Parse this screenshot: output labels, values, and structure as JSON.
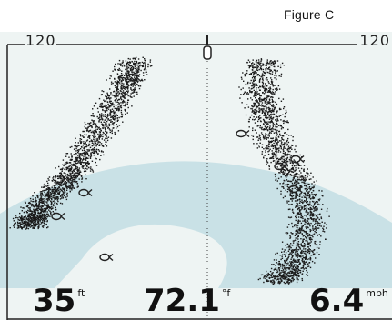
{
  "caption": "Figure C",
  "colors": {
    "screen_bg": "#eef4f3",
    "watermark": "#bcdbe2",
    "sonar_returns": "#1a1a1a",
    "border": "#222222"
  },
  "icons": {
    "fish": "fish-icon",
    "transducer": "transducer-cone-icon"
  },
  "range": {
    "left": "120",
    "right": "120"
  },
  "readouts": {
    "depth": {
      "value": "35",
      "unit": "ft"
    },
    "temperature": {
      "value": "72.1",
      "unit": "°f"
    },
    "speed": {
      "value": "6.4",
      "unit": "mph"
    }
  }
}
